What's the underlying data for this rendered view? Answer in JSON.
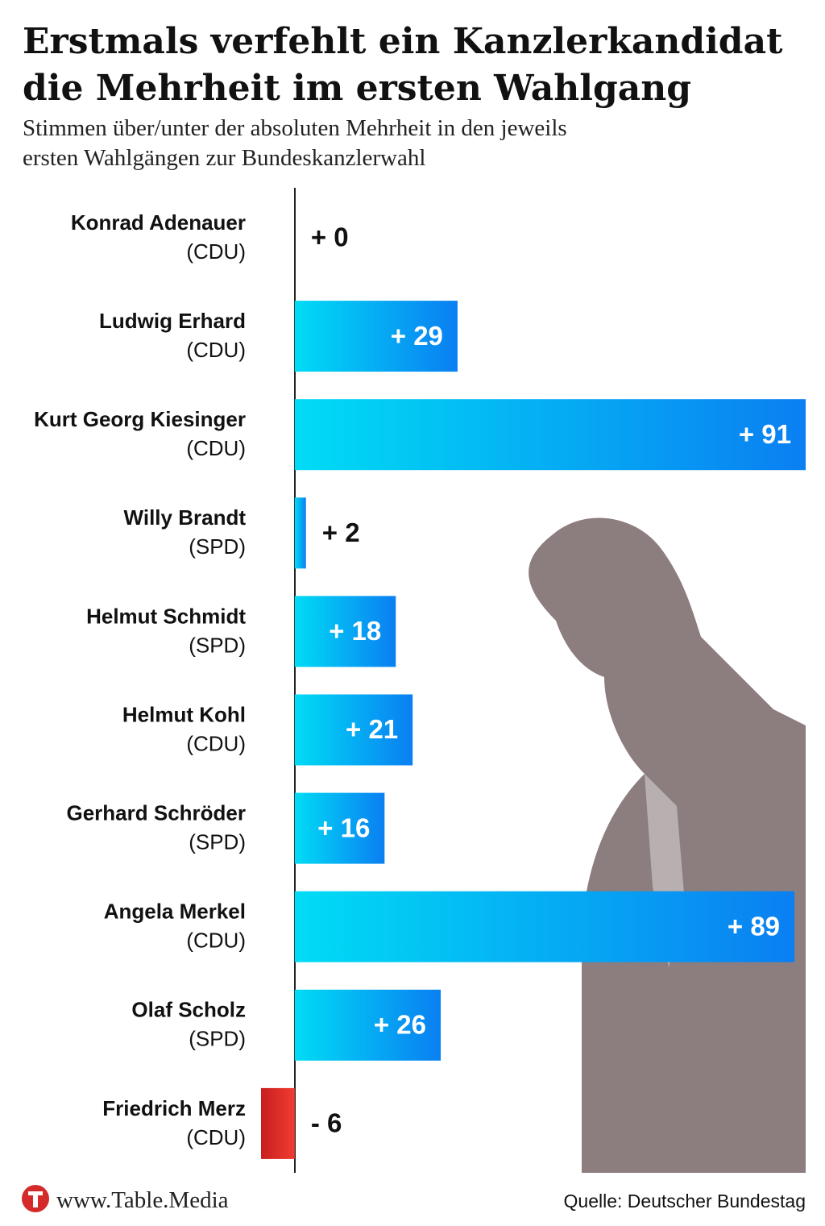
{
  "chart_data": {
    "type": "bar",
    "orientation": "horizontal",
    "title": [
      "Erstmals verfehlt ein Kanzlerkandidat",
      "die Mehrheit im ersten Wahlgang"
    ],
    "subtitle": [
      "Stimmen über/unter der absoluten Mehrheit in den jeweils",
      "ersten Wahlgängen zur Bundeskanzlerwahl"
    ],
    "categories": [
      "Konrad Adenauer",
      "Ludwig Erhard",
      "Kurt Georg Kiesinger",
      "Willy Brandt",
      "Helmut Schmidt",
      "Helmut Kohl",
      "Gerhard Schröder",
      "Angela Merkel",
      "Olaf Scholz",
      "Friedrich Merz"
    ],
    "parties": [
      "(CDU)",
      "(CDU)",
      "(CDU)",
      "(SPD)",
      "(SPD)",
      "(CDU)",
      "(SPD)",
      "(CDU)",
      "(SPD)",
      "(CDU)"
    ],
    "values": [
      0,
      29,
      91,
      2,
      18,
      21,
      16,
      89,
      26,
      -6
    ],
    "value_labels": [
      "+ 0",
      "+ 29",
      "+ 91",
      "+ 2",
      "+ 18",
      "+ 21",
      "+ 16",
      "+ 89",
      "+ 26",
      "- 6"
    ],
    "color": {
      "positive": [
        "#00dcf5",
        "#0a7ff2"
      ],
      "negative": [
        "#c81e1e",
        "#f03c32"
      ]
    },
    "xlim": [
      -6,
      91
    ],
    "source": "Quelle: Deutscher Bundestag",
    "brand": "www.Table.Media"
  }
}
